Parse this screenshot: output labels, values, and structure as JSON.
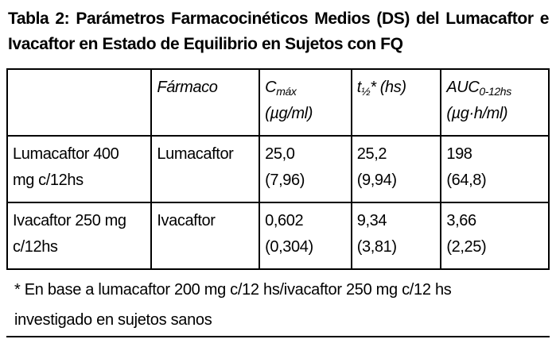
{
  "title": "Tabla 2: Parámetros Farmacocinéticos Medios (DS) del Lumacaftor e Ivacaftor en Estado de Equilibrio en Sujetos con FQ",
  "table": {
    "header": [
      {
        "main": ""
      },
      {
        "main": "Fármaco"
      },
      {
        "main": "C",
        "sub": "máx",
        "unit": "(µg/ml)"
      },
      {
        "main": "t",
        "sub": "½",
        "rest": "* (hs)"
      },
      {
        "main": "AUC",
        "sub": "0-12hs",
        "unit": "(µg·h/ml)"
      }
    ],
    "rows": [
      [
        [
          "Lumacaftor 400",
          "mg c/12hs"
        ],
        [
          "Lumacaftor"
        ],
        [
          "25,0",
          "(7,96)"
        ],
        [
          "25,2",
          "(9,94)"
        ],
        [
          "198",
          "(64,8)"
        ]
      ],
      [
        [
          "Ivacaftor 250 mg",
          "c/12hs"
        ],
        [
          "Ivacaftor"
        ],
        [
          "0,602",
          "(0,304)"
        ],
        [
          "9,34",
          "(3,81)"
        ],
        [
          "3,66",
          "(2,25)"
        ]
      ]
    ]
  },
  "footnote": [
    "* En base a lumacaftor 200 mg c/12 hs/ivacaftor 250 mg c/12 hs",
    "investigado en sujetos sanos"
  ]
}
